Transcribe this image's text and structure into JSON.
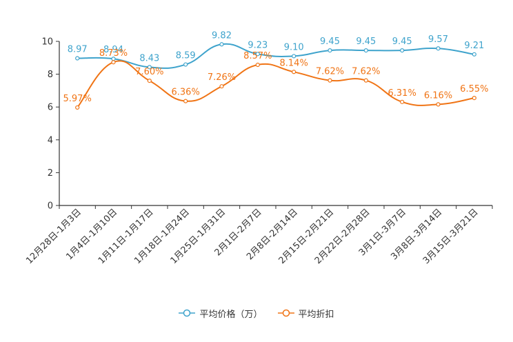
{
  "chart_data": {
    "type": "line",
    "title": "",
    "xlabel": "",
    "ylabel": "",
    "ylim": [
      0,
      10
    ],
    "yticks": [
      "0",
      "2",
      "4",
      "6",
      "8",
      "10"
    ],
    "grid": false,
    "legend_position": "bottom-center",
    "categories": [
      "12月28日-1月3日",
      "1月4日-1月10日",
      "1月11日-1月17日",
      "1月18日-1月24日",
      "1月25日-1月31日",
      "2月1日-2月7日",
      "2月8日-2月14日",
      "2月15日-2月21日",
      "2月22日-2月28日",
      "3月1日-3月7日",
      "3月8日-3月14日",
      "3月15日-3月21日"
    ],
    "series": [
      {
        "name": "平均价格（万）",
        "color": "#3ea3cc",
        "values": [
          8.97,
          8.94,
          8.43,
          8.59,
          9.82,
          9.23,
          9.1,
          9.45,
          9.45,
          9.45,
          9.57,
          9.21
        ],
        "labels": [
          "8.97",
          "8.94",
          "8.43",
          "8.59",
          "9.82",
          "9.23",
          "9.10",
          "9.45",
          "9.45",
          "9.45",
          "9.57",
          "9.21"
        ]
      },
      {
        "name": "平均折扣",
        "color": "#f07415",
        "values": [
          5.97,
          8.73,
          7.6,
          6.36,
          7.26,
          8.57,
          8.14,
          7.62,
          7.62,
          6.31,
          6.16,
          6.55
        ],
        "labels": [
          "5.97%",
          "8.73%",
          "7.60%",
          "6.36%",
          "7.26%",
          "8.57%",
          "8.14%",
          "7.62%",
          "7.62%",
          "6.31%",
          "6.16%",
          "6.55%"
        ]
      }
    ]
  }
}
